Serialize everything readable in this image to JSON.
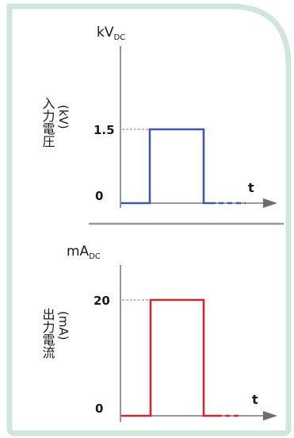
{
  "colors": {
    "card_border": "#cfe6d8",
    "card_fill": "#ffffff",
    "axis": "#777777",
    "arrow": "#6d6d6d",
    "divider": "#9a9a9a",
    "guide": "#888888",
    "voltage_line": "#3d5aa6",
    "current_line": "#d0282e",
    "text": "#1a1a1a"
  },
  "top_panel": {
    "unit_main": "kV",
    "unit_sub": "DC",
    "side_title": "入力電圧",
    "side_unit": "(kV)",
    "level_label": "1.5",
    "zero_label": "0",
    "t_label": "t"
  },
  "bottom_panel": {
    "unit_main": "mA",
    "unit_sub": "DC",
    "side_title": "出力電流",
    "side_unit": "(mA)",
    "level_label": "20",
    "zero_label": "0",
    "t_label": "t"
  }
}
